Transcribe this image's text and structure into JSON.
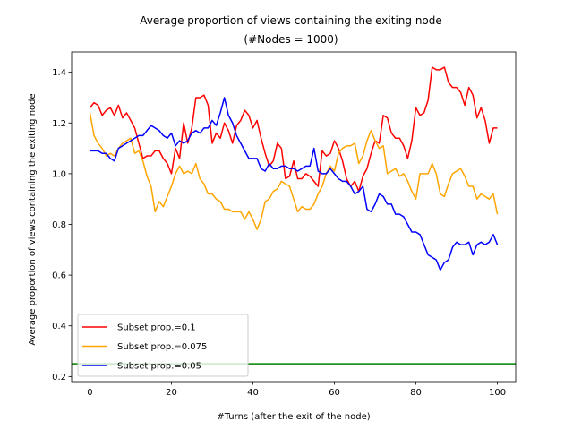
{
  "chart_data": {
    "type": "line",
    "title": "Average proportion of views containing the exiting node",
    "subtitle": "(#Nodes = 1000)",
    "xlabel": "#Turns (after the exit of the node)",
    "ylabel": "Average proportion of views containing the exiting node",
    "xlim": [
      -4.5,
      104.5
    ],
    "ylim": [
      0.18,
      1.48
    ],
    "xticks": [
      0,
      20,
      40,
      60,
      80,
      100
    ],
    "yticks": [
      0.2,
      0.4,
      0.6,
      0.8,
      1.0,
      1.2,
      1.4
    ],
    "legend_position": "lower-left",
    "grid": false,
    "series": [
      {
        "name": "Subset prop.=0.1",
        "color": "#ff0000",
        "x": [
          0,
          1,
          2,
          3,
          4,
          5,
          6,
          7,
          8,
          9,
          10,
          11,
          12,
          13,
          14,
          15,
          16,
          17,
          18,
          19,
          20,
          21,
          22,
          23,
          24,
          25,
          26,
          27,
          28,
          29,
          30,
          31,
          32,
          33,
          34,
          35,
          36,
          37,
          38,
          39,
          40,
          41,
          42,
          43,
          44,
          45,
          46,
          47,
          48,
          49,
          50,
          51,
          52,
          53,
          54,
          55,
          56,
          57,
          58,
          59,
          60,
          61,
          62,
          63,
          64,
          65,
          66,
          67,
          68,
          69,
          70,
          71,
          72,
          73,
          74,
          75,
          76,
          77,
          78,
          79,
          80,
          81,
          82,
          83,
          84,
          85,
          86,
          87,
          88,
          89,
          90,
          91,
          92,
          93,
          94,
          95,
          96,
          97,
          98,
          99,
          100
        ],
        "values": [
          1.26,
          1.28,
          1.27,
          1.23,
          1.25,
          1.26,
          1.23,
          1.27,
          1.22,
          1.24,
          1.21,
          1.18,
          1.12,
          1.06,
          1.07,
          1.07,
          1.09,
          1.09,
          1.06,
          1.04,
          1.0,
          1.1,
          1.06,
          1.2,
          1.12,
          1.18,
          1.3,
          1.3,
          1.31,
          1.27,
          1.12,
          1.16,
          1.14,
          1.2,
          1.17,
          1.12,
          1.19,
          1.21,
          1.25,
          1.23,
          1.18,
          1.21,
          1.14,
          1.08,
          1.03,
          1.05,
          1.12,
          1.1,
          0.98,
          0.99,
          1.05,
          0.98,
          0.98,
          1.0,
          0.99,
          0.97,
          0.95,
          1.09,
          1.07,
          1.08,
          1.13,
          1.1,
          1.05,
          0.98,
          0.95,
          0.97,
          0.93,
          0.99,
          1.02,
          1.08,
          1.13,
          1.12,
          1.23,
          1.22,
          1.16,
          1.14,
          1.14,
          1.11,
          1.06,
          1.13,
          1.26,
          1.23,
          1.24,
          1.29,
          1.42,
          1.41,
          1.41,
          1.42,
          1.36,
          1.34,
          1.34,
          1.32,
          1.27,
          1.34,
          1.31,
          1.22,
          1.26,
          1.21,
          1.12,
          1.18,
          1.18
        ]
      },
      {
        "name": "Subset prop.=0.075",
        "color": "#ffa500",
        "x": [
          0,
          1,
          2,
          3,
          4,
          5,
          6,
          7,
          8,
          9,
          10,
          11,
          12,
          13,
          14,
          15,
          16,
          17,
          18,
          19,
          20,
          21,
          22,
          23,
          24,
          25,
          26,
          27,
          28,
          29,
          30,
          31,
          32,
          33,
          34,
          35,
          36,
          37,
          38,
          39,
          40,
          41,
          42,
          43,
          44,
          45,
          46,
          47,
          48,
          49,
          50,
          51,
          52,
          53,
          54,
          55,
          56,
          57,
          58,
          59,
          60,
          61,
          62,
          63,
          64,
          65,
          66,
          67,
          68,
          69,
          70,
          71,
          72,
          73,
          74,
          75,
          76,
          77,
          78,
          79,
          80,
          81,
          82,
          83,
          84,
          85,
          86,
          87,
          88,
          89,
          90,
          91,
          92,
          93,
          94,
          95,
          96,
          97,
          98,
          99,
          100
        ],
        "values": [
          1.24,
          1.15,
          1.12,
          1.1,
          1.07,
          1.08,
          1.07,
          1.1,
          1.12,
          1.13,
          1.14,
          1.08,
          1.09,
          1.05,
          0.99,
          0.95,
          0.85,
          0.89,
          0.87,
          0.91,
          0.95,
          1.0,
          1.03,
          1.0,
          1.01,
          1.0,
          1.04,
          0.98,
          0.96,
          0.92,
          0.92,
          0.9,
          0.89,
          0.86,
          0.86,
          0.85,
          0.85,
          0.85,
          0.82,
          0.85,
          0.82,
          0.78,
          0.82,
          0.89,
          0.9,
          0.93,
          0.94,
          0.97,
          0.96,
          0.95,
          0.9,
          0.85,
          0.87,
          0.86,
          0.86,
          0.88,
          0.92,
          0.95,
          1.0,
          1.03,
          1.01,
          1.08,
          1.1,
          1.11,
          1.11,
          1.12,
          1.04,
          1.07,
          1.13,
          1.17,
          1.13,
          1.1,
          1.11,
          1.0,
          1.01,
          1.02,
          0.99,
          1.0,
          0.97,
          0.93,
          0.9,
          1.0,
          1.0,
          1.0,
          1.04,
          1.0,
          0.92,
          0.91,
          0.96,
          1.0,
          1.01,
          1.02,
          0.99,
          0.95,
          0.95,
          0.9,
          0.92,
          0.91,
          0.9,
          0.92,
          0.84
        ]
      },
      {
        "name": "Subset prop.=0.05",
        "color": "#0000ff",
        "x": [
          0,
          1,
          2,
          3,
          4,
          5,
          6,
          7,
          8,
          9,
          10,
          11,
          12,
          13,
          14,
          15,
          16,
          17,
          18,
          19,
          20,
          21,
          22,
          23,
          24,
          25,
          26,
          27,
          28,
          29,
          30,
          31,
          32,
          33,
          34,
          35,
          36,
          37,
          38,
          39,
          40,
          41,
          42,
          43,
          44,
          45,
          46,
          47,
          48,
          49,
          50,
          51,
          52,
          53,
          54,
          55,
          56,
          57,
          58,
          59,
          60,
          61,
          62,
          63,
          64,
          65,
          66,
          67,
          68,
          69,
          70,
          71,
          72,
          73,
          74,
          75,
          76,
          77,
          78,
          79,
          80,
          81,
          82,
          83,
          84,
          85,
          86,
          87,
          88,
          89,
          90,
          91,
          92,
          93,
          94,
          95,
          96,
          97,
          98,
          99,
          100
        ],
        "values": [
          1.09,
          1.09,
          1.09,
          1.08,
          1.08,
          1.06,
          1.05,
          1.1,
          1.11,
          1.12,
          1.13,
          1.14,
          1.15,
          1.15,
          1.17,
          1.19,
          1.18,
          1.17,
          1.15,
          1.14,
          1.16,
          1.11,
          1.13,
          1.12,
          1.13,
          1.16,
          1.17,
          1.16,
          1.18,
          1.18,
          1.21,
          1.19,
          1.24,
          1.3,
          1.23,
          1.2,
          1.15,
          1.12,
          1.09,
          1.06,
          1.06,
          1.06,
          1.02,
          1.01,
          1.04,
          1.02,
          1.02,
          1.03,
          1.03,
          1.02,
          1.02,
          1.01,
          1.02,
          1.03,
          1.03,
          1.1,
          1.01,
          1.0,
          1.0,
          1.02,
          1.0,
          0.98,
          0.97,
          0.97,
          0.95,
          0.92,
          0.93,
          0.95,
          0.86,
          0.85,
          0.88,
          0.92,
          0.91,
          0.88,
          0.88,
          0.84,
          0.84,
          0.83,
          0.8,
          0.77,
          0.77,
          0.76,
          0.72,
          0.68,
          0.67,
          0.66,
          0.62,
          0.65,
          0.66,
          0.71,
          0.73,
          0.72,
          0.72,
          0.73,
          0.68,
          0.72,
          0.73,
          0.72,
          0.73,
          0.76,
          0.72
        ]
      }
    ],
    "hline": {
      "y": 0.25,
      "color": "#008000"
    }
  }
}
